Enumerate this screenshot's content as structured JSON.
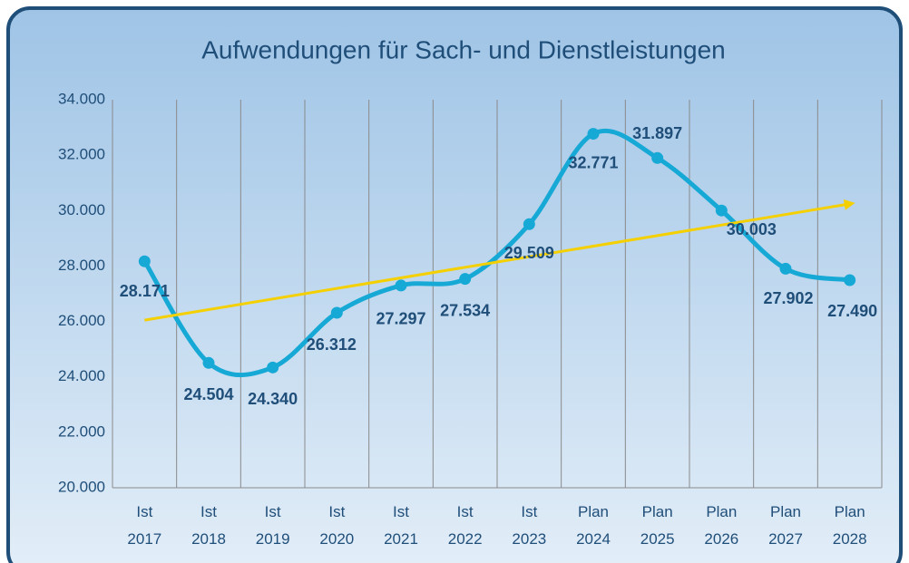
{
  "chart_data": {
    "type": "line",
    "title": "Aufwendungen für Sach- und Dienstleistungen",
    "categories": [
      "Ist 2017",
      "Ist 2018",
      "Ist 2019",
      "Ist 2020",
      "Ist 2021",
      "Ist 2022",
      "Ist 2023",
      "Plan 2024",
      "Plan 2025",
      "Plan 2026",
      "Plan 2027",
      "Plan 2028"
    ],
    "values": [
      28171,
      24504,
      24340,
      26312,
      27297,
      27534,
      29509,
      32771,
      31897,
      30003,
      27902,
      27490
    ],
    "value_labels": [
      "28.171",
      "24.504",
      "24.340",
      "26.312",
      "27.297",
      "27.534",
      "29.509",
      "32.771",
      "31.897",
      "30.003",
      "27.902",
      "27.490"
    ],
    "color": "#17a9d6",
    "smooth": true,
    "trendline": {
      "type": "linear",
      "color": "#f5d000"
    },
    "ylim": [
      20000,
      34000
    ],
    "yticks": [
      {
        "value": 20000,
        "label": "20.000"
      },
      {
        "value": 22000,
        "label": "22.000"
      },
      {
        "value": 24000,
        "label": "24.000"
      },
      {
        "value": 26000,
        "label": "26.000"
      },
      {
        "value": 28000,
        "label": "28.000"
      },
      {
        "value": 30000,
        "label": "30.000"
      },
      {
        "value": 32000,
        "label": "32.000"
      },
      {
        "value": 34000,
        "label": "34.000"
      }
    ],
    "grid": "vertical"
  }
}
